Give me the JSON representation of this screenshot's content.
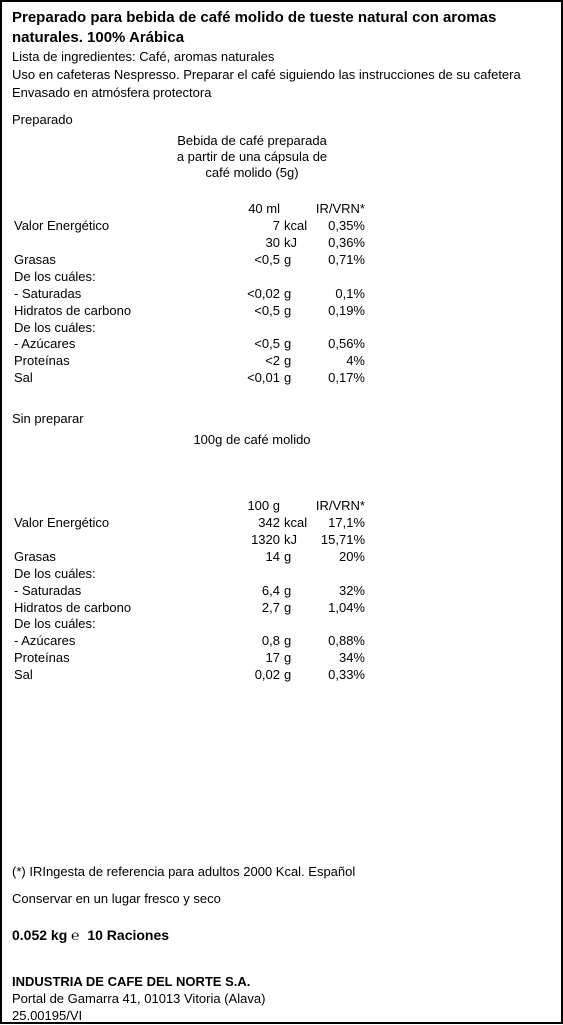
{
  "title": "Preparado para bebida de café molido de tueste natural con aromas naturales. 100% Arábica",
  "ingredients": "Lista de ingredientes: Café, aromas naturales",
  "usage": "Uso en cafeteras Nespresso. Preparar el café siguiendo las instrucciones de su cafetera",
  "packaging": "Envasado en atmósfera protectora",
  "prepared": {
    "header": "Preparado",
    "serving_desc_l1": "Bebida de café preparada",
    "serving_desc_l2": "a partir de una cápsula de",
    "serving_desc_l3": "café molido (5g)",
    "col_amount": "40 ml",
    "col_ir": "IR/VRN*",
    "rows": [
      {
        "label": "Valor  Energético",
        "val": "7",
        "unit": "kcal",
        "pct": "0,35%",
        "indent": 0
      },
      {
        "label": "",
        "val": "30",
        "unit": "kJ",
        "pct": "0,36%",
        "indent": 0
      },
      {
        "label": "Grasas",
        "val": "<0,5",
        "unit": "g",
        "pct": "0,71%",
        "indent": 0
      },
      {
        "label": "De los cuáles:",
        "val": "",
        "unit": "",
        "pct": "",
        "indent": 1
      },
      {
        "label": "-  Saturadas",
        "val": "<0,02",
        "unit": "g",
        "pct": "0,1%",
        "indent": 2
      },
      {
        "label": "Hidratos  de  carbono",
        "val": "<0,5",
        "unit": "g",
        "pct": "0,19%",
        "indent": 0
      },
      {
        "label": "De los cuáles:",
        "val": "",
        "unit": "",
        "pct": "",
        "indent": 1
      },
      {
        "label": "-  Azúcares",
        "val": "<0,5",
        "unit": "g",
        "pct": "0,56%",
        "indent": 2
      },
      {
        "label": "Proteínas",
        "val": "<2",
        "unit": "g",
        "pct": "4%",
        "indent": 0
      },
      {
        "label": "Sal",
        "val": "<0,01",
        "unit": "g",
        "pct": "0,17%",
        "indent": 0
      }
    ]
  },
  "unprepared": {
    "header": "Sin preparar",
    "serving_desc": "100g de café molido",
    "col_amount": "100 g",
    "col_ir": "IR/VRN*",
    "rows": [
      {
        "label": "Valor  Energético",
        "val": "342",
        "unit": "kcal",
        "pct": "17,1%",
        "indent": 0
      },
      {
        "label": "",
        "val": "1320",
        "unit": "kJ",
        "pct": "15,71%",
        "indent": 0
      },
      {
        "label": "Grasas",
        "val": "14",
        "unit": "g",
        "pct": "20%",
        "indent": 0
      },
      {
        "label": "De los cuáles:",
        "val": "",
        "unit": "",
        "pct": "",
        "indent": 1
      },
      {
        "label": "-  Saturadas",
        "val": "6,4",
        "unit": "g",
        "pct": "32%",
        "indent": 2
      },
      {
        "label": "Hidratos  de  carbono",
        "val": "2,7",
        "unit": "g",
        "pct": "1,04%",
        "indent": 0
      },
      {
        "label": "De los cuáles:",
        "val": "",
        "unit": "",
        "pct": "",
        "indent": 1
      },
      {
        "label": "-  Azúcares",
        "val": "0,8",
        "unit": "g",
        "pct": "0,88%",
        "indent": 2
      },
      {
        "label": "Proteínas",
        "val": "17",
        "unit": "g",
        "pct": "34%",
        "indent": 0
      },
      {
        "label": "Sal",
        "val": "0,02",
        "unit": "g",
        "pct": "0,33%",
        "indent": 0
      }
    ]
  },
  "footnote": "(*) IRIngesta de referencia para adultos 2000 Kcal. Español",
  "storage": "Conservar en un lugar fresco y seco",
  "weight": "0.052 kg",
  "estimated_symbol": "℮",
  "servings": "10 Raciones",
  "company": {
    "name": "INDUSTRIA DE CAFE DEL NORTE S.A.",
    "address": "Portal de Gamarra 41, 01013 Vitoria (Alava)",
    "code": "25.00195/VI"
  }
}
